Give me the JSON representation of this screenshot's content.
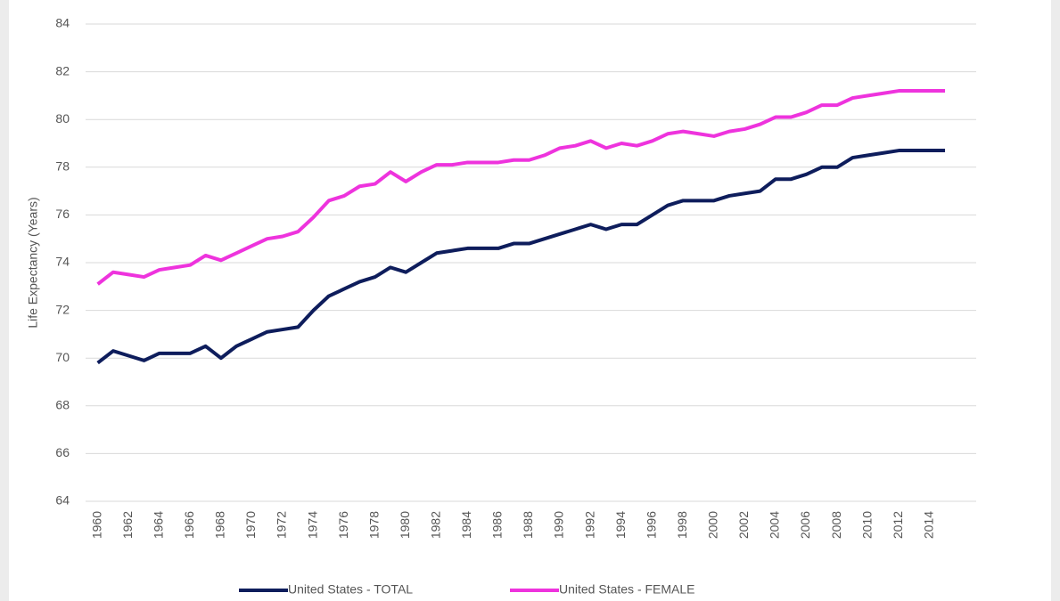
{
  "chart_data": {
    "type": "line",
    "y_label": "Life Expectancy (Years)",
    "categories": [
      "1960",
      null,
      "1962",
      null,
      "1964",
      null,
      "1966",
      null,
      "1968",
      null,
      "1970",
      null,
      "1972",
      null,
      "1974",
      null,
      "1976",
      null,
      "1978",
      null,
      "1980",
      null,
      "1982",
      null,
      "1984",
      null,
      "1986",
      null,
      "1988",
      null,
      "1990",
      null,
      "1992",
      null,
      "1994",
      null,
      "1996",
      null,
      "1998",
      null,
      "2000",
      null,
      "2002",
      null,
      "2004",
      null,
      "2006",
      null,
      "2008",
      null,
      "2010",
      null,
      "2012",
      null,
      "2014",
      null
    ],
    "series": [
      {
        "name": "United States - TOTAL",
        "color": "#0e1d5c",
        "values": [
          69.8,
          70.3,
          70.1,
          69.9,
          70.2,
          70.2,
          70.2,
          70.5,
          70.0,
          70.5,
          70.8,
          71.1,
          71.2,
          71.3,
          72.0,
          72.6,
          72.9,
          73.2,
          73.4,
          73.8,
          73.6,
          74.0,
          74.4,
          74.5,
          74.6,
          74.6,
          74.6,
          74.8,
          74.8,
          75.0,
          75.2,
          75.4,
          75.6,
          75.4,
          75.6,
          75.6,
          76.0,
          76.4,
          76.6,
          76.6,
          76.6,
          76.8,
          76.9,
          77.0,
          77.5,
          77.5,
          77.7,
          78.0,
          78.0,
          78.4,
          78.5,
          78.6,
          78.7,
          78.7,
          78.7,
          78.7
        ]
      },
      {
        "name": "United States - FEMALE",
        "color": "#ee33dd",
        "values": [
          73.1,
          73.6,
          73.5,
          73.4,
          73.7,
          73.8,
          73.9,
          74.3,
          74.1,
          74.4,
          74.7,
          75.0,
          75.1,
          75.3,
          75.9,
          76.6,
          76.8,
          77.2,
          77.3,
          77.8,
          77.4,
          77.8,
          78.1,
          78.1,
          78.2,
          78.2,
          78.2,
          78.3,
          78.3,
          78.5,
          78.8,
          78.9,
          79.1,
          78.8,
          79.0,
          78.9,
          79.1,
          79.4,
          79.5,
          79.4,
          79.3,
          79.5,
          79.6,
          79.8,
          80.1,
          80.1,
          80.3,
          80.6,
          80.6,
          80.9,
          81.0,
          81.1,
          81.2,
          81.2,
          81.2,
          81.2
        ]
      }
    ],
    "ylim": [
      64,
      84
    ],
    "yticks": [
      64,
      66,
      68,
      70,
      72,
      74,
      76,
      78,
      80,
      82,
      84
    ],
    "grid": true,
    "legend": "bottom"
  }
}
